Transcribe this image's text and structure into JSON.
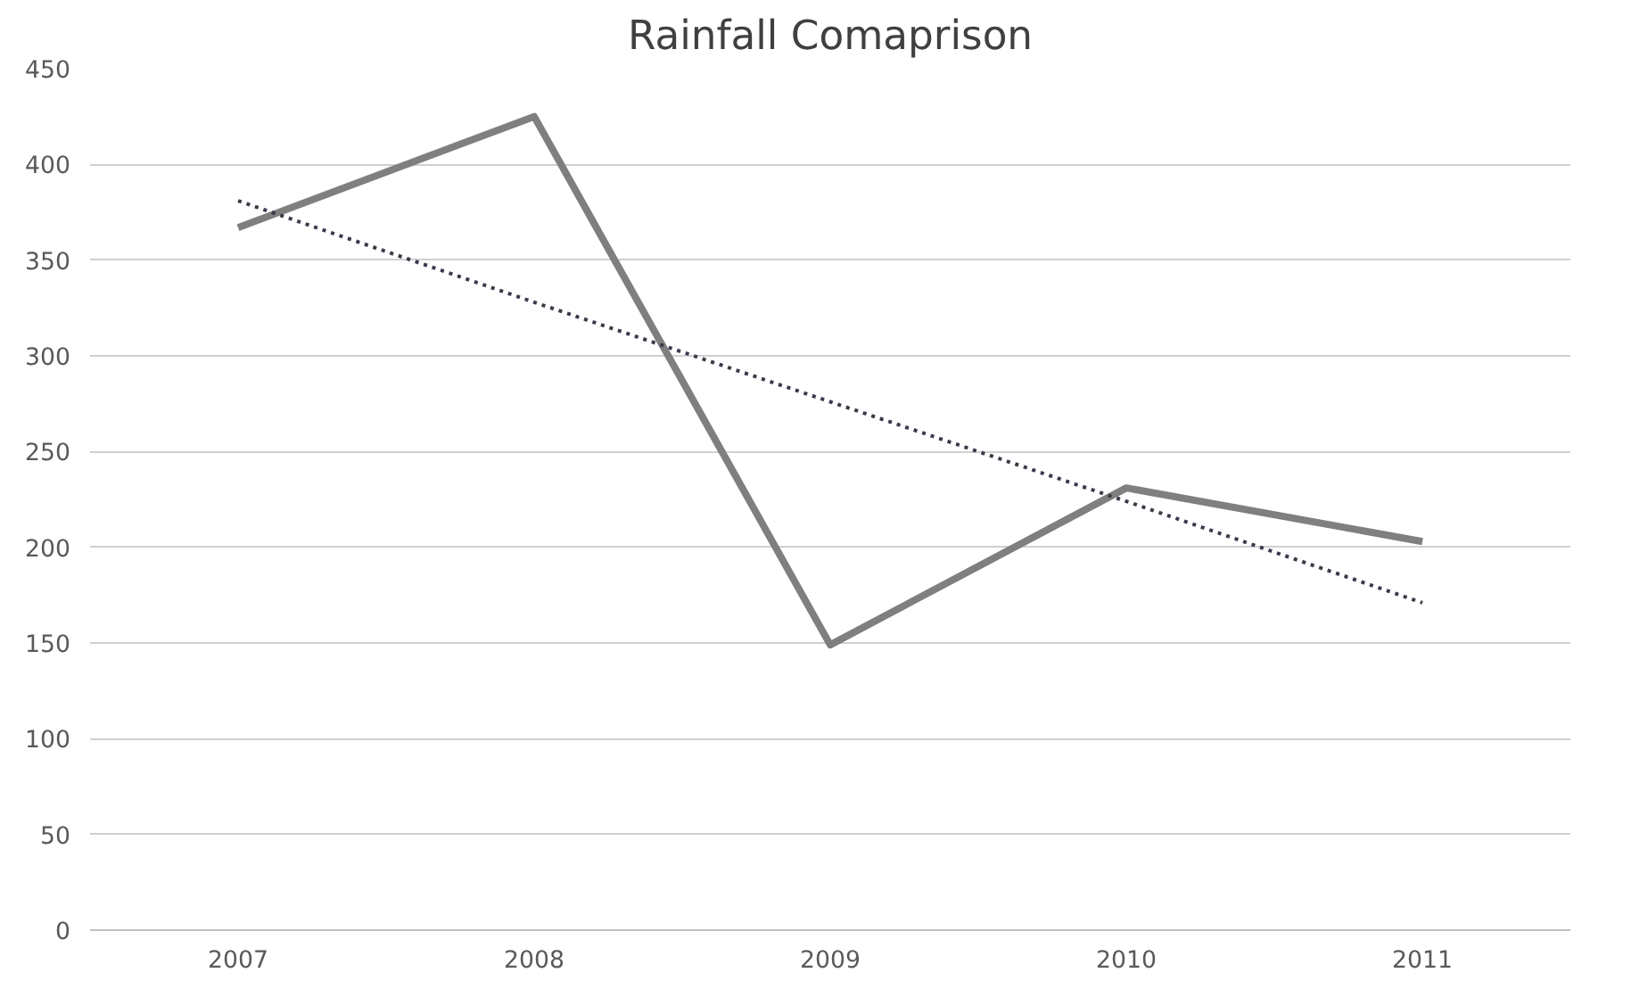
{
  "chart_data": {
    "type": "line",
    "title": "Rainfall Comaprison",
    "categories": [
      "2007",
      "2008",
      "2009",
      "2010",
      "2011"
    ],
    "series": [
      {
        "color": "#7f7f7f",
        "values": [
          367,
          425,
          149,
          231,
          203
        ]
      },
      {
        "type": "line",
        "line_style": "dotted",
        "color": "#3a3a4a",
        "values": [
          381,
          328,
          276,
          224,
          171
        ]
      }
    ],
    "ylim": [
      0,
      450
    ],
    "yticks": [
      0,
      50,
      100,
      150,
      200,
      250,
      300,
      350,
      400,
      450
    ],
    "grid": "y",
    "line_style": "solid",
    "marker": "none"
  }
}
